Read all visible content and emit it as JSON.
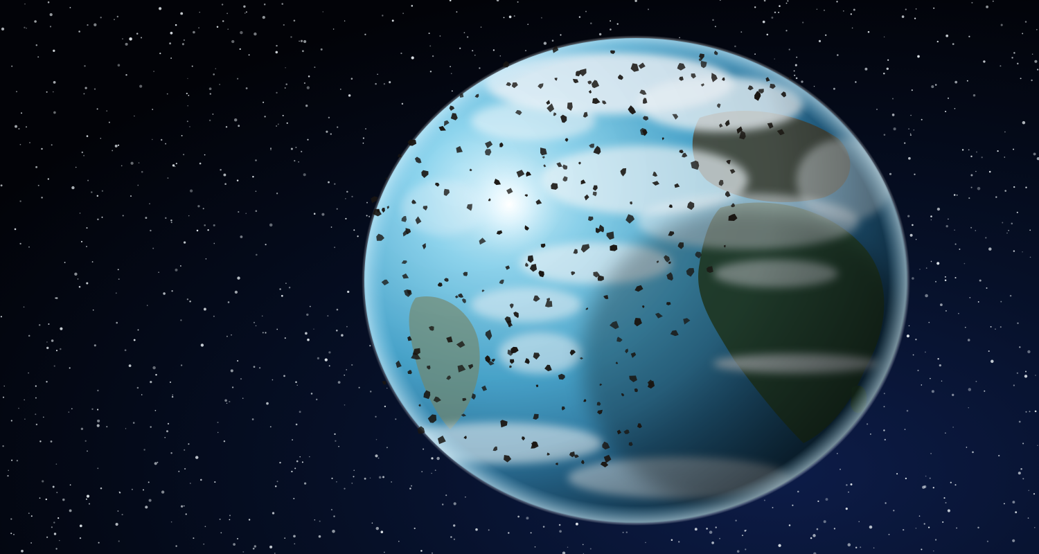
{
  "scene": {
    "subject": "earth-planet",
    "background": "starfield",
    "debris": "space-debris-field"
  },
  "colors": {
    "space_dark": "#03060f",
    "space_blue": "#0a1a40",
    "ocean_light": "#8fd6ef",
    "ocean_mid": "#3e9ec8",
    "ocean_deep": "#1d4f74",
    "land_green": "#2d5a35",
    "cloud_white": "#eef6fb",
    "debris": "#1a1612",
    "star": "#e8eef2"
  }
}
